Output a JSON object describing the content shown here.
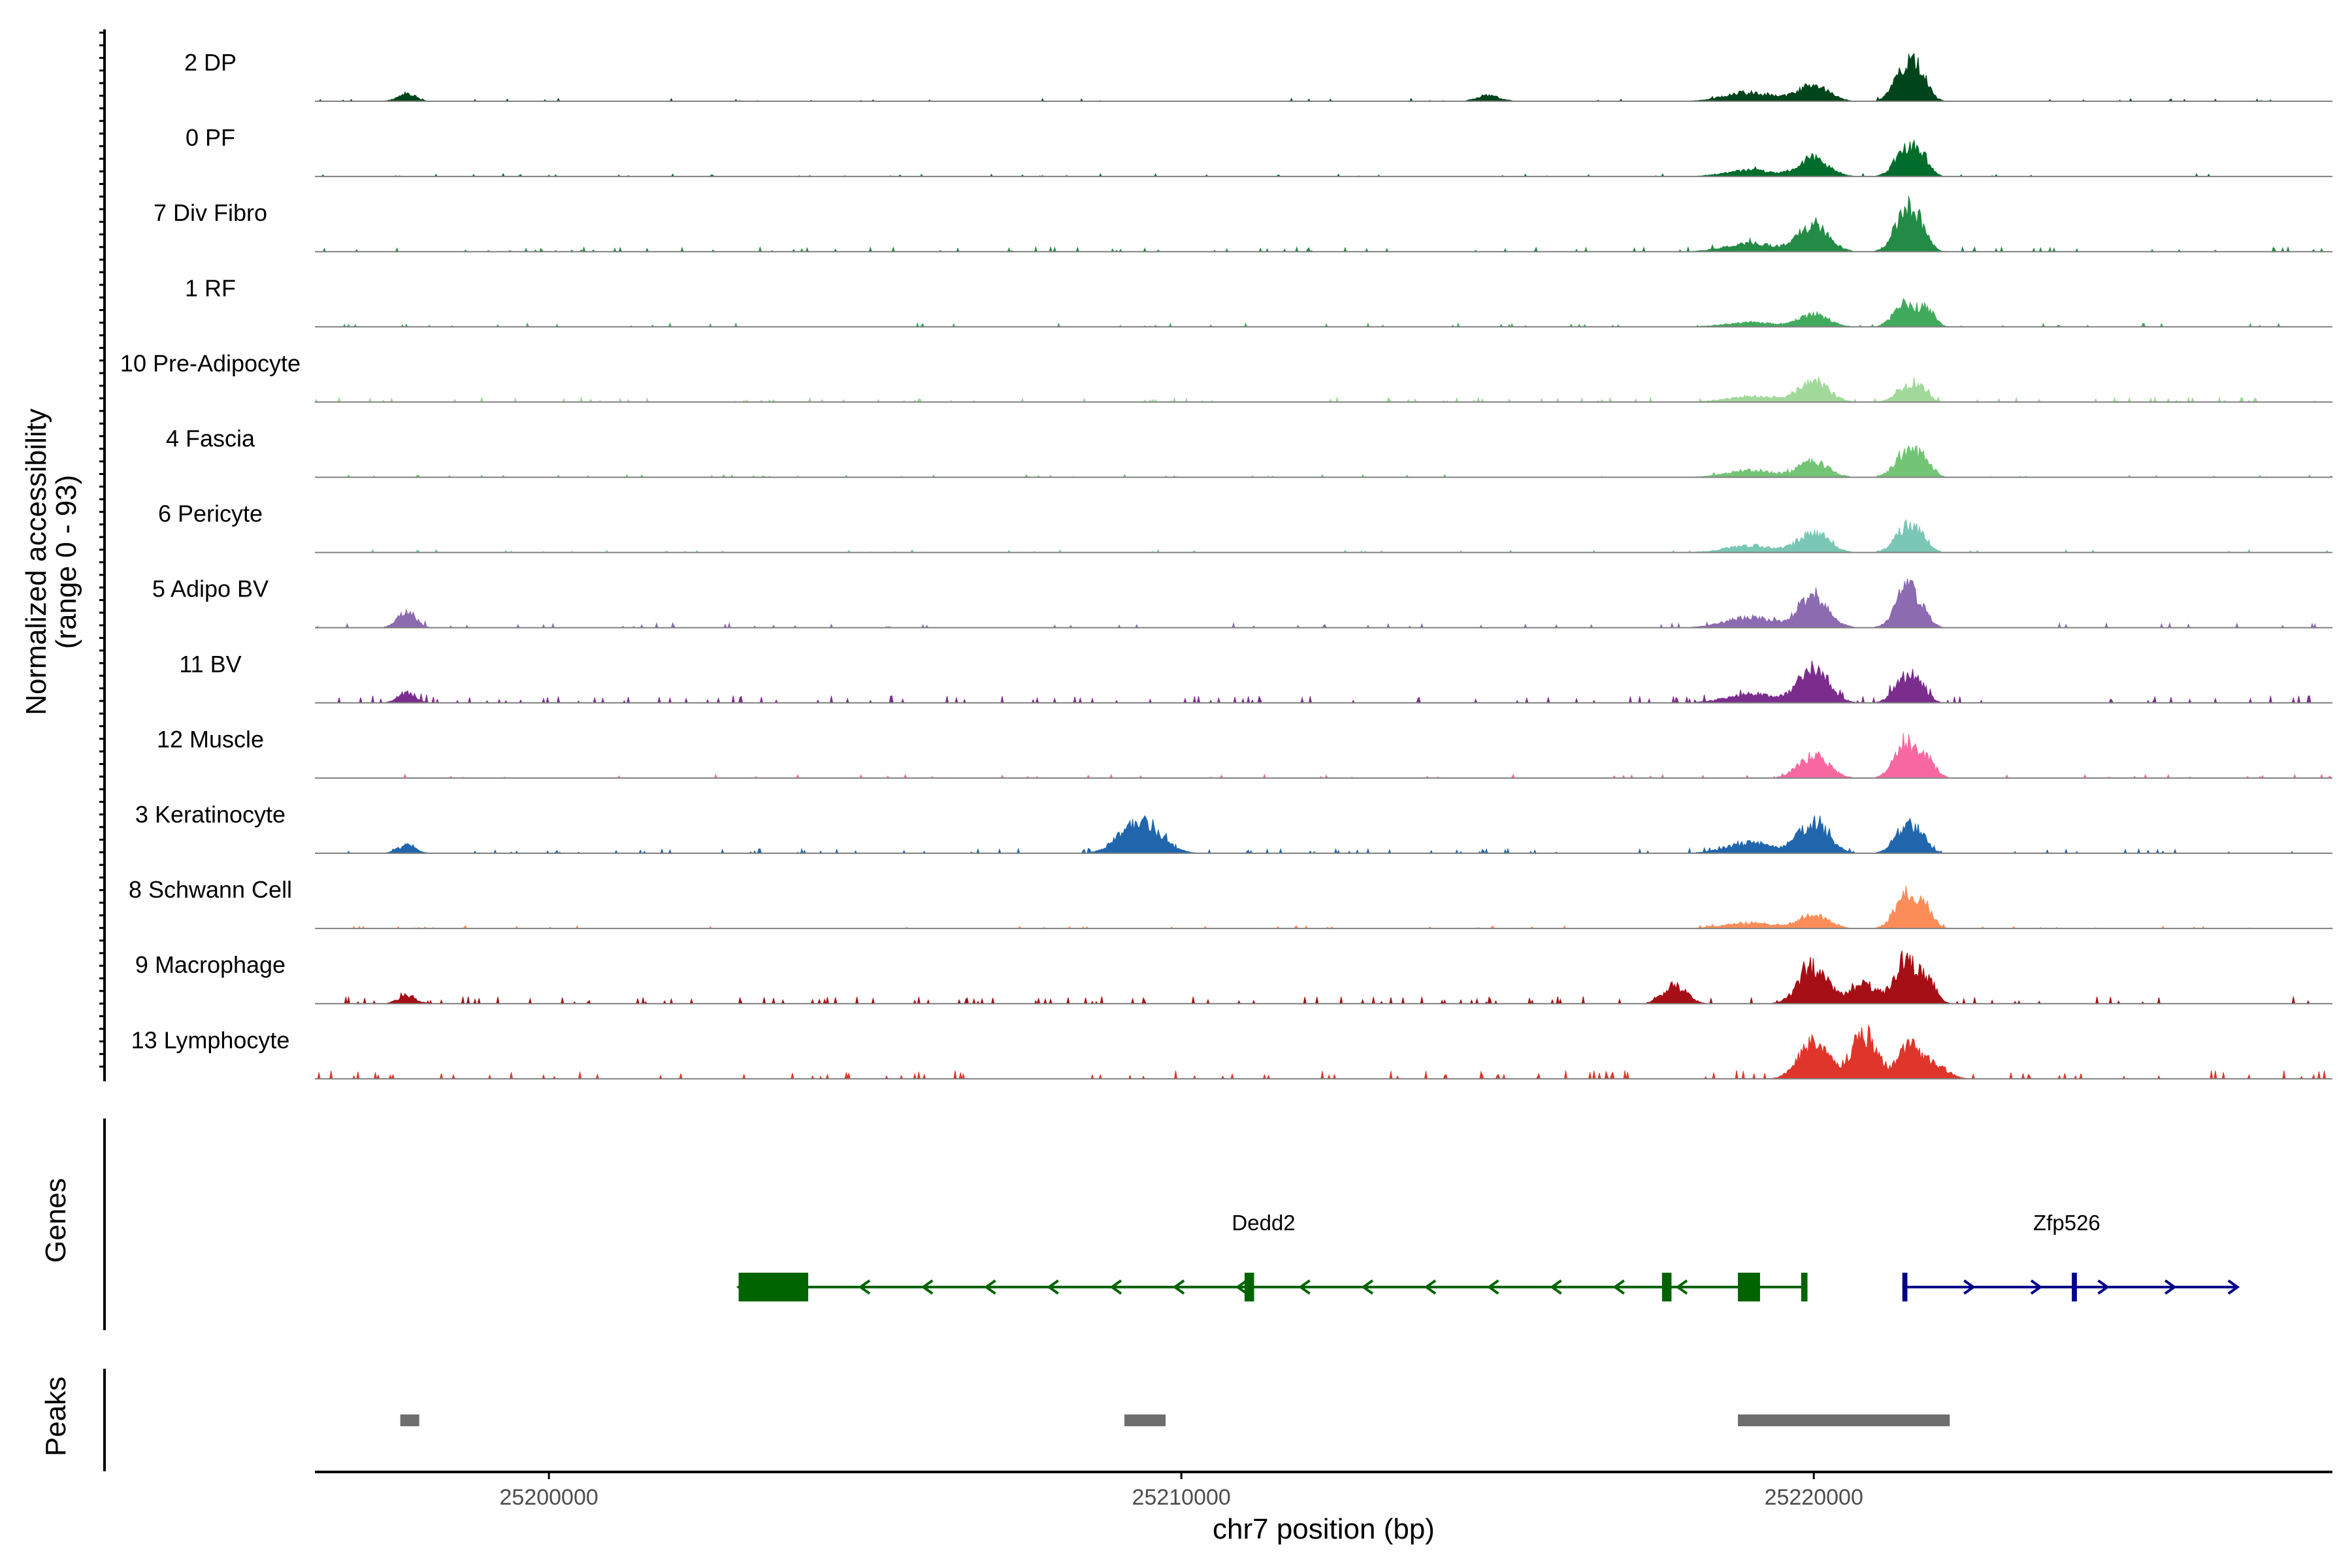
{
  "chart_data": {
    "type": "area",
    "title": "",
    "ylabel_line1": "Normalized accessibility",
    "ylabel_line2": "(range 0 - 93)",
    "ylim": [
      0,
      93
    ],
    "xlabel": "chr7 position (bp)",
    "xlim": [
      25196300,
      25228200
    ],
    "x_ticks": [
      {
        "value": 25200000,
        "label": "25200000"
      },
      {
        "value": 25210000,
        "label": "25210000"
      },
      {
        "value": 25220000,
        "label": "25220000"
      }
    ],
    "tracks": [
      {
        "name": "2 DP",
        "color": "#00441b",
        "peaks": [
          [
            25197750,
            140,
            14
          ],
          [
            25214860,
            180,
            10
          ],
          [
            25219000,
            380,
            16
          ],
          [
            25220000,
            230,
            30
          ],
          [
            25221450,
            170,
            58
          ],
          [
            25221700,
            130,
            36
          ]
        ],
        "noise": 3,
        "sparse": 0.3
      },
      {
        "name": "0 PF",
        "color": "#006d2c",
        "peaks": [
          [
            25219000,
            380,
            11
          ],
          [
            25220000,
            230,
            32
          ],
          [
            25221450,
            170,
            45
          ],
          [
            25221700,
            130,
            30
          ]
        ],
        "noise": 3,
        "sparse": 0.3
      },
      {
        "name": "7 Div Fibro",
        "color": "#238b45",
        "peaks": [
          [
            25219000,
            380,
            15
          ],
          [
            25220000,
            230,
            48
          ],
          [
            25221450,
            170,
            72
          ],
          [
            25221700,
            130,
            30
          ]
        ],
        "noise": 5,
        "sparse": 0.5
      },
      {
        "name": "1 RF",
        "color": "#41ab5d",
        "peaks": [
          [
            25219000,
            380,
            8
          ],
          [
            25220000,
            230,
            22
          ],
          [
            25221450,
            170,
            44
          ],
          [
            25221800,
            120,
            28
          ]
        ],
        "noise": 4,
        "sparse": 0.35
      },
      {
        "name": "10 Pre-Adipocyte",
        "color": "#a1d99b",
        "peaks": [
          [
            25219000,
            380,
            10
          ],
          [
            25220000,
            230,
            38
          ],
          [
            25221450,
            170,
            24
          ],
          [
            25221700,
            130,
            18
          ]
        ],
        "noise": 5,
        "sparse": 0.45
      },
      {
        "name": "4 Fascia",
        "color": "#74c476",
        "peaks": [
          [
            25219000,
            380,
            12
          ],
          [
            25220000,
            230,
            28
          ],
          [
            25221450,
            170,
            45
          ],
          [
            25221750,
            130,
            28
          ]
        ],
        "noise": 3,
        "sparse": 0.3
      },
      {
        "name": "6 Pericyte",
        "color": "#7ac7b5",
        "peaks": [
          [
            25219000,
            380,
            12
          ],
          [
            25220000,
            230,
            35
          ],
          [
            25221450,
            170,
            42
          ],
          [
            25221700,
            130,
            22
          ]
        ],
        "noise": 3,
        "sparse": 0.3
      },
      {
        "name": "5 Adipo BV",
        "color": "#8c6bb1",
        "peaks": [
          [
            25197750,
            140,
            30
          ],
          [
            25219000,
            380,
            18
          ],
          [
            25220000,
            230,
            55
          ],
          [
            25221450,
            170,
            65
          ],
          [
            25221700,
            130,
            25
          ]
        ],
        "noise": 5,
        "sparse": 0.4
      },
      {
        "name": "11 BV",
        "color": "#7b2d8e",
        "peaks": [
          [
            25197750,
            140,
            18
          ],
          [
            25219000,
            380,
            16
          ],
          [
            25220000,
            230,
            65
          ],
          [
            25221450,
            170,
            45
          ],
          [
            25221700,
            130,
            20
          ]
        ],
        "noise": 8,
        "sparse": 0.65
      },
      {
        "name": "12 Muscle",
        "color": "#f768a1",
        "peaks": [
          [
            25220000,
            230,
            40
          ],
          [
            25221450,
            170,
            65
          ],
          [
            25221800,
            130,
            30
          ]
        ],
        "noise": 4,
        "sparse": 0.3
      },
      {
        "name": "3 Keratinocyte",
        "color": "#2166ac",
        "peaks": [
          [
            25197750,
            140,
            14
          ],
          [
            25209350,
            300,
            60
          ],
          [
            25219000,
            380,
            18
          ],
          [
            25220000,
            230,
            55
          ],
          [
            25221450,
            170,
            45
          ],
          [
            25221700,
            130,
            22
          ]
        ],
        "noise": 5,
        "sparse": 0.45
      },
      {
        "name": "8 Schwann Cell",
        "color": "#fc8d59",
        "peaks": [
          [
            25219000,
            380,
            10
          ],
          [
            25220000,
            230,
            24
          ],
          [
            25221450,
            170,
            60
          ],
          [
            25221750,
            130,
            35
          ]
        ],
        "noise": 3,
        "sparse": 0.3
      },
      {
        "name": "9 Macrophage",
        "color": "#a50f15",
        "peaks": [
          [
            25197750,
            140,
            14
          ],
          [
            25217800,
            180,
            32
          ],
          [
            25220000,
            230,
            65
          ],
          [
            25220800,
            200,
            35
          ],
          [
            25221450,
            170,
            78
          ],
          [
            25221800,
            130,
            40
          ]
        ],
        "noise": 8,
        "sparse": 0.6
      },
      {
        "name": "13 Lymphocyte",
        "color": "#e0352b",
        "peaks": [
          [
            25220000,
            230,
            68
          ],
          [
            25220800,
            200,
            80
          ],
          [
            25221500,
            170,
            55
          ],
          [
            25221900,
            200,
            25
          ]
        ],
        "noise": 9,
        "sparse": 0.55
      }
    ],
    "genes_label": "Genes",
    "genes": [
      {
        "name": "Dedd2",
        "color": "#006400",
        "strand": "-",
        "start": 25203000,
        "end": 25219900,
        "label_pos": 25211300,
        "exons": [
          [
            25203000,
            25204100
          ],
          [
            25211000,
            25211150
          ],
          [
            25217600,
            25217750
          ],
          [
            25218800,
            25219150
          ],
          [
            25219800,
            25219900
          ]
        ]
      },
      {
        "name": "Zfp526",
        "color": "#00008b",
        "strand": "+",
        "start": 25221400,
        "end": 25226700,
        "label_pos": 25224000,
        "exons": [
          [
            25221400,
            25221480
          ],
          [
            25224080,
            25224160
          ]
        ]
      }
    ],
    "peaks_label": "Peaks",
    "peak_regions": [
      [
        25197650,
        25197950
      ],
      [
        25209100,
        25209750
      ],
      [
        25218800,
        25222150
      ]
    ]
  }
}
